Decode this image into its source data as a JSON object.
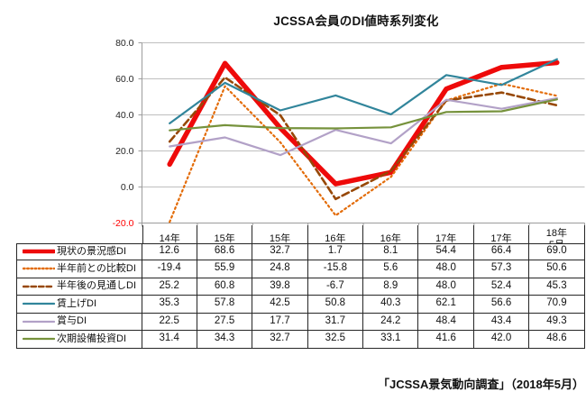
{
  "title": "JCSSA会員のDI値時系列変化",
  "caption": "「JCSSA景気動向調査」（2018年5月）",
  "table": {
    "columns": [
      [
        "14年",
        "11月"
      ],
      [
        "15年",
        "5月"
      ],
      [
        "15年",
        "11月"
      ],
      [
        "16年",
        "5月"
      ],
      [
        "16年",
        "11月"
      ],
      [
        "17年",
        "5月"
      ],
      [
        "17年",
        "11月"
      ],
      [
        "18年",
        "5月",
        "（今回）"
      ]
    ]
  },
  "chart_data": {
    "type": "line",
    "title": "JCSSA会員のDI値時系列変化",
    "categories": [
      "14年11月",
      "15年5月",
      "15年11月",
      "16年5月",
      "16年11月",
      "17年5月",
      "17年11月",
      "18年5月（今回）"
    ],
    "series": [
      {
        "name": "現状の景況感DI",
        "color": "#ee0a0a",
        "style": "solid",
        "width": 5.5,
        "values": [
          12.6,
          68.6,
          32.7,
          1.7,
          8.1,
          54.4,
          66.4,
          69.0
        ]
      },
      {
        "name": "半年前との比較DI",
        "color": "#e36c09",
        "style": "dotted",
        "width": 2.2,
        "values": [
          -19.4,
          55.9,
          24.8,
          -15.8,
          5.6,
          48.0,
          57.3,
          50.6
        ]
      },
      {
        "name": "半年後の見通しDI",
        "color": "#974806",
        "style": "dashed",
        "width": 2.6,
        "values": [
          25.2,
          60.8,
          39.8,
          -6.7,
          8.9,
          48.0,
          52.4,
          45.3
        ]
      },
      {
        "name": "賃上げDI",
        "color": "#31859b",
        "style": "solid",
        "width": 2.2,
        "values": [
          35.3,
          57.8,
          42.5,
          50.8,
          40.3,
          62.1,
          56.6,
          70.9
        ]
      },
      {
        "name": "賞与DI",
        "color": "#b2a1c7",
        "style": "solid",
        "width": 2.2,
        "values": [
          22.5,
          27.5,
          17.7,
          31.7,
          24.2,
          48.4,
          43.4,
          49.3
        ]
      },
      {
        "name": "次期設備投資DI",
        "color": "#76923c",
        "style": "solid",
        "width": 2.2,
        "values": [
          31.4,
          34.3,
          32.7,
          32.5,
          33.1,
          41.6,
          42.0,
          48.6
        ]
      }
    ],
    "ylim": [
      -20,
      80
    ],
    "yticks": [
      80.0,
      60.0,
      40.0,
      20.0,
      0.0,
      -20.0
    ],
    "ytick_decimals": 1,
    "negative_tick_color": "#ff0000",
    "grid": true,
    "gridline_color": "#bfbfbf",
    "axis_color": "#9c9c9c",
    "legend_position": "table-left"
  }
}
